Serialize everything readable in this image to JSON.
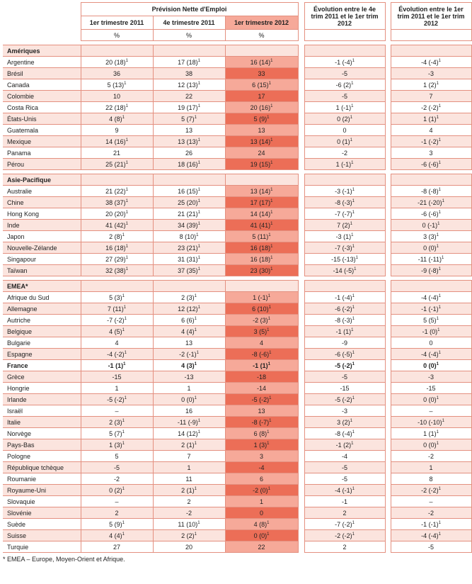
{
  "header": {
    "group_title": "Prévision Nette d'Emploi",
    "q1_2011": "1er trimestre 2011",
    "q4_2011": "4e trimestre 2011",
    "q1_2012": "1er trimestre 2012",
    "evo_q4": "Évolution entre le 4e trim 2011 et le 1er trim 2012",
    "evo_q1": "Évolution entre le 1er trim 2011 et le 1er trim 2012",
    "unit": "%"
  },
  "sections": [
    {
      "title": "Amériques",
      "rows": [
        [
          "Argentine",
          "20 (18)¹",
          "17 (18)¹",
          "16 (14)¹",
          "-1 (-4)¹",
          "-4 (-4)¹"
        ],
        [
          "Brésil",
          "36",
          "38",
          "33",
          "-5",
          "-3"
        ],
        [
          "Canada",
          "5 (13)¹",
          "12 (13)¹",
          "6 (15)¹",
          "-6 (2)¹",
          "1 (2)¹"
        ],
        [
          "Colombie",
          "10",
          "22",
          "17",
          "-5",
          "7"
        ],
        [
          "Costa Rica",
          "22 (18)¹",
          "19 (17)¹",
          "20 (16)¹",
          "1 (-1)¹",
          "-2 (-2)¹"
        ],
        [
          "États-Unis",
          "4 (8)¹",
          "5 (7)¹",
          "5 (9)¹",
          "0 (2)¹",
          "1 (1)¹"
        ],
        [
          "Guatemala",
          "9",
          "13",
          "13",
          "0",
          "4"
        ],
        [
          "Mexique",
          "14 (16)¹",
          "13 (13)¹",
          "13 (14)¹",
          "0 (1)¹",
          "-1 (-2)¹"
        ],
        [
          "Panama",
          "21",
          "26",
          "24",
          "-2",
          "3"
        ],
        [
          "Pérou",
          "25 (21)¹",
          "18 (16)¹",
          "19 (15)¹",
          "1 (-1)¹",
          "-6 (-6)¹"
        ]
      ]
    },
    {
      "title": "Asie-Pacifique",
      "rows": [
        [
          "Australie",
          "21 (22)¹",
          "16 (15)¹",
          "13 (14)¹",
          "-3 (-1)¹",
          "-8 (-8)¹"
        ],
        [
          "Chine",
          "38 (37)¹",
          "25 (20)¹",
          "17 (17)¹",
          "-8 (-3)¹",
          "-21 (-20)¹"
        ],
        [
          "Hong Kong",
          "20 (20)¹",
          "21 (21)¹",
          "14 (14)¹",
          "-7 (-7)¹",
          "-6 (-6)¹"
        ],
        [
          "Inde",
          "41 (42)¹",
          "34 (39)¹",
          "41 (41)¹",
          "7 (2)¹",
          "0 (-1)¹"
        ],
        [
          "Japon",
          "2 (8)¹",
          "8 (10)¹",
          "5 (11)¹",
          "-3 (1)¹",
          "3 (3)¹"
        ],
        [
          "Nouvelle-Zélande",
          "16 (18)¹",
          "23 (21)¹",
          "16 (18)¹",
          "-7 (-3)¹",
          "0 (0)¹"
        ],
        [
          "Singapour",
          "27 (29)¹",
          "31 (31)¹",
          "16 (18)¹",
          "-15 (-13)¹",
          "-11 (-11)¹"
        ],
        [
          "Taïwan",
          "32 (38)¹",
          "37 (35)¹",
          "23 (30)¹",
          "-14 (-5)¹",
          "-9 (-8)¹"
        ]
      ]
    },
    {
      "title": "EMEA*",
      "rows": [
        [
          "Afrique du Sud",
          "5 (3)¹",
          "2 (3)¹",
          "1 (-1)¹",
          "-1 (-4)¹",
          "-4 (-4)¹"
        ],
        [
          "Allemagne",
          "7 (11)¹",
          "12 (12)¹",
          "6 (10)¹",
          "-6 (-2)¹",
          "-1 (-1)¹"
        ],
        [
          "Autriche",
          "-7 (-2)¹",
          "6 (6)¹",
          "-2 (3)¹",
          "-8 (-3)¹",
          "5 (5)¹"
        ],
        [
          "Belgique",
          "4 (5)¹",
          "4 (4)¹",
          "3 (5)¹",
          "-1 (1)¹",
          "-1 (0)¹"
        ],
        [
          "Bulgarie",
          "4",
          "13",
          "4",
          "-9",
          "0"
        ],
        [
          "Espagne",
          "-4 (-2)¹",
          "-2 (-1)¹",
          "-8 (-6)¹",
          "-6 (-5)¹",
          "-4 (-4)¹"
        ],
        [
          "France",
          "-1 (1)¹",
          "4 (3)¹",
          "-1 (1)¹",
          "-5 (-2)¹",
          "0 (0)¹"
        ],
        [
          "Grèce",
          "-15",
          "-13",
          "-18",
          "-5",
          "-3"
        ],
        [
          "Hongrie",
          "1",
          "1",
          "-14",
          "-15",
          "-15"
        ],
        [
          "Irlande",
          "-5 (-2)¹",
          "0 (0)¹",
          "-5 (-2)¹",
          "-5 (-2)¹",
          "0 (0)¹"
        ],
        [
          "Israël",
          "–",
          "16",
          "13",
          "-3",
          "–"
        ],
        [
          "Italie",
          "2 (3)¹",
          "-11 (-9)¹",
          "-8 (-7)¹",
          "3 (2)¹",
          "-10 (-10)¹"
        ],
        [
          "Norvège",
          "5 (7)¹",
          "14 (12)¹",
          "6 (8)¹",
          "-8 (-4)¹",
          "1 (1)¹"
        ],
        [
          "Pays-Bas",
          "1 (3)¹",
          "2 (1)¹",
          "1 (3)¹",
          "-1 (2)¹",
          "0 (0)¹"
        ],
        [
          "Pologne",
          "5",
          "7",
          "3",
          "-4",
          "-2"
        ],
        [
          "République tchèque",
          "-5",
          "1",
          "-4",
          "-5",
          "1"
        ],
        [
          "Roumanie",
          "-2",
          "11",
          "6",
          "-5",
          "8"
        ],
        [
          "Royaume-Uni",
          "0 (2)¹",
          "2 (1)¹",
          "-2 (0)¹",
          "-4 (-1)¹",
          "-2 (-2)¹"
        ],
        [
          "Slovaquie",
          "–",
          "2",
          "1",
          "-1",
          "–"
        ],
        [
          "Slovénie",
          "2",
          "-2",
          "0",
          "2",
          "-2"
        ],
        [
          "Suède",
          "5 (9)¹",
          "11 (10)¹",
          "4 (8)¹",
          "-7 (-2)¹",
          "-1 (-1)¹"
        ],
        [
          "Suisse",
          "4 (4)¹",
          "2 (2)¹",
          "0 (0)¹",
          "-2 (-2)¹",
          "-4 (-4)¹"
        ],
        [
          "Turquie",
          "27",
          "20",
          "22",
          "2",
          "-5"
        ]
      ]
    }
  ],
  "bold_row": "France",
  "footnote": "* EMEA – Europe, Moyen-Orient et Afrique."
}
